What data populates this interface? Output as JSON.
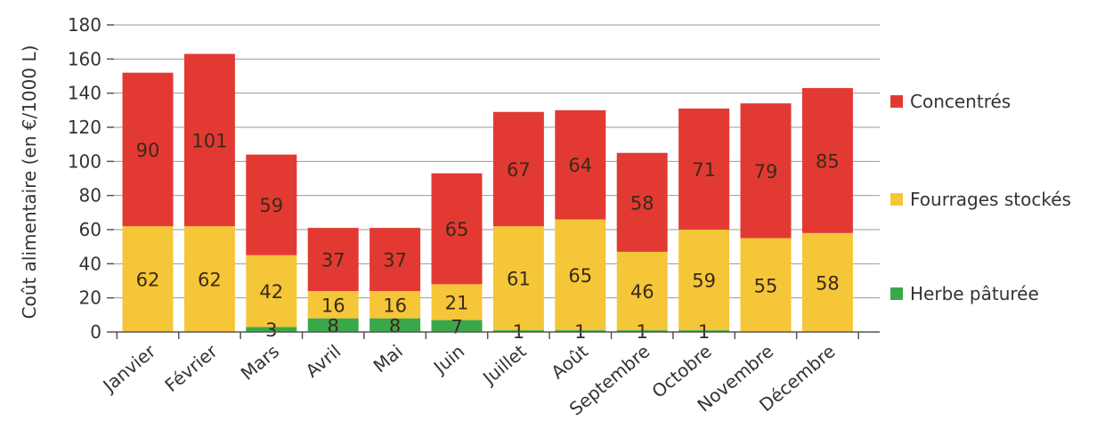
{
  "chart_data": {
    "type": "bar",
    "stacked": true,
    "categories": [
      "Janvier",
      "Février",
      "Mars",
      "Avril",
      "Mai",
      "Juin",
      "Juillet",
      "Août",
      "Septembre",
      "Octobre",
      "Novembre",
      "Décembre"
    ],
    "series": [
      {
        "name": "Herbe pâturée",
        "color": "#3aa84a",
        "values": [
          0,
          0,
          3,
          8,
          8,
          7,
          1,
          1,
          1,
          1,
          0,
          0
        ],
        "labels": [
          "",
          "",
          "3",
          "8",
          "8",
          "7",
          "1",
          "1",
          "1",
          "1",
          "",
          ""
        ]
      },
      {
        "name": "Fourrages stockés",
        "color": "#f5c638",
        "values": [
          62,
          62,
          42,
          16,
          16,
          21,
          61,
          65,
          46,
          59,
          55,
          58
        ],
        "labels": [
          "62",
          "62",
          "42",
          "16",
          "16",
          "21",
          "61",
          "65",
          "46",
          "59",
          "55",
          "58"
        ]
      },
      {
        "name": "Concentrés",
        "color": "#e23a33",
        "values": [
          90,
          101,
          59,
          37,
          37,
          65,
          67,
          64,
          58,
          71,
          79,
          85
        ],
        "labels": [
          "90",
          "101",
          "59",
          "37",
          "37",
          "65",
          "67",
          "64",
          "58",
          "71",
          "79",
          "85"
        ]
      }
    ],
    "ylabel": "Coût alimentaire (en €/1000 L)",
    "ylim": [
      0,
      180
    ],
    "yticks": [
      "0",
      "20",
      "40",
      "60",
      "80",
      "100",
      "120",
      "140",
      "160",
      "180"
    ],
    "grid": true,
    "legend_order": [
      "Concentrés",
      "Fourrages stockés",
      "Herbe pâturée"
    ],
    "legend_position": "right"
  }
}
